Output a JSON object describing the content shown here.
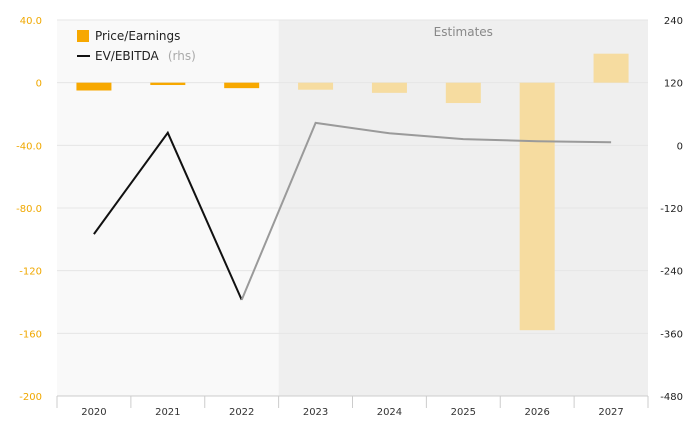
{
  "chart_data": {
    "type": "bar+line",
    "categories": [
      "2020",
      "2021",
      "2022",
      "2023",
      "2024",
      "2025",
      "2026",
      "2027"
    ],
    "estimates_from": "2023",
    "estimates_label": "Estimates",
    "series": [
      {
        "name": "Price/Earnings",
        "type": "bar",
        "axis": "left",
        "color": "#f7a800",
        "estimate_color": "#f6dca0",
        "values": [
          -5,
          -1.5,
          -3.5,
          -4.5,
          -6.5,
          -13,
          -158,
          18.5
        ]
      },
      {
        "name": "EV/EBITDA",
        "name_suffix": "(rhs)",
        "type": "line",
        "axis": "right",
        "color": "#111111",
        "estimate_color": "#9a9a9a",
        "values": [
          -170,
          24,
          -296,
          43,
          23,
          12,
          8,
          6
        ]
      }
    ],
    "y_left": {
      "min": -200,
      "max": 40,
      "ticks": [
        40,
        0,
        -40,
        -80,
        -120,
        -160,
        -200
      ],
      "tick_labels": [
        "40.0",
        "0",
        "-40.0",
        "-80.0",
        "-120",
        "-160",
        "-200"
      ]
    },
    "y_right": {
      "min": -480,
      "max": 240,
      "ticks": [
        240,
        120,
        0,
        -120,
        -240,
        -360,
        -480
      ],
      "tick_labels": [
        "240",
        "120",
        "0",
        "-120",
        "-240",
        "-360",
        "-480"
      ]
    },
    "grid": true,
    "legend_position": "top-left"
  }
}
